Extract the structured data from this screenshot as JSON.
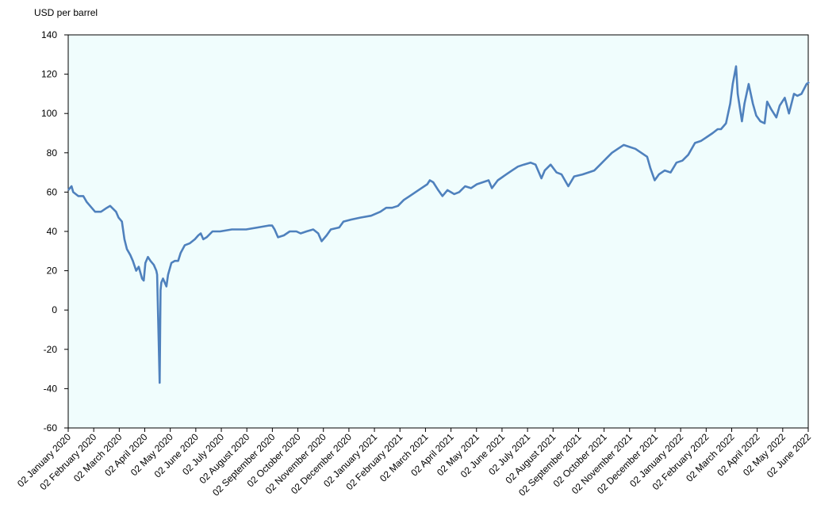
{
  "chart_data": {
    "type": "line",
    "ylabel": "USD per barrel",
    "ylim": [
      -60,
      140
    ],
    "yticks": [
      "140",
      "120",
      "100",
      "80",
      "60",
      "40",
      "20",
      "0",
      "-20",
      "-40",
      "-60"
    ],
    "xticks": [
      "02 January 2020",
      "02 February 2020",
      "02 March 2020",
      "02 April 2020",
      "02 May 2020",
      "02 June 2020",
      "02 July 2020",
      "02 August 2020",
      "02 September 2020",
      "02 October 2020",
      "02 November 2020",
      "02 December 2020",
      "02 January 2021",
      "02 February 2021",
      "02 March 2021",
      "02 April 2021",
      "02 May 2021",
      "02 June 2021",
      "02 July 2021",
      "02 August 2021",
      "02 September 2021",
      "02 October 2021",
      "02 November 2021",
      "02 December 2021",
      "02 January 2022",
      "02 February 2022",
      "02 March 2022",
      "02 April 2022",
      "02 May 2022",
      "02 June 2022"
    ],
    "grid": false,
    "colors": {
      "line": "#4f81bd",
      "plot_bg": "#f0fdfd",
      "axis": "#000000"
    },
    "series": [
      {
        "points": [
          [
            "2020-01-02",
            61
          ],
          [
            "2020-01-06",
            63
          ],
          [
            "2020-01-08",
            60
          ],
          [
            "2020-01-14",
            58
          ],
          [
            "2020-01-20",
            58
          ],
          [
            "2020-01-24",
            55
          ],
          [
            "2020-01-30",
            52
          ],
          [
            "2020-02-03",
            50
          ],
          [
            "2020-02-10",
            50
          ],
          [
            "2020-02-17",
            52
          ],
          [
            "2020-02-21",
            53
          ],
          [
            "2020-02-28",
            50
          ],
          [
            "2020-03-02",
            47
          ],
          [
            "2020-03-06",
            45
          ],
          [
            "2020-03-09",
            36
          ],
          [
            "2020-03-12",
            31
          ],
          [
            "2020-03-16",
            28
          ],
          [
            "2020-03-19",
            25
          ],
          [
            "2020-03-23",
            20
          ],
          [
            "2020-03-26",
            22
          ],
          [
            "2020-03-30",
            16
          ],
          [
            "2020-04-01",
            15
          ],
          [
            "2020-04-03",
            24
          ],
          [
            "2020-04-06",
            27
          ],
          [
            "2020-04-09",
            25
          ],
          [
            "2020-04-13",
            23
          ],
          [
            "2020-04-16",
            20
          ],
          [
            "2020-04-17",
            18
          ],
          [
            "2020-04-20",
            -37
          ],
          [
            "2020-04-21",
            10
          ],
          [
            "2020-04-22",
            14
          ],
          [
            "2020-04-24",
            16
          ],
          [
            "2020-04-28",
            12
          ],
          [
            "2020-04-30",
            18
          ],
          [
            "2020-05-04",
            24
          ],
          [
            "2020-05-08",
            25
          ],
          [
            "2020-05-12",
            25
          ],
          [
            "2020-05-15",
            29
          ],
          [
            "2020-05-20",
            33
          ],
          [
            "2020-05-26",
            34
          ],
          [
            "2020-06-01",
            36
          ],
          [
            "2020-06-05",
            38
          ],
          [
            "2020-06-08",
            39
          ],
          [
            "2020-06-11",
            36
          ],
          [
            "2020-06-15",
            37
          ],
          [
            "2020-06-22",
            40
          ],
          [
            "2020-07-01",
            40
          ],
          [
            "2020-07-15",
            41
          ],
          [
            "2020-08-01",
            41
          ],
          [
            "2020-08-15",
            42
          ],
          [
            "2020-08-28",
            43
          ],
          [
            "2020-09-01",
            43
          ],
          [
            "2020-09-04",
            41
          ],
          [
            "2020-09-08",
            37
          ],
          [
            "2020-09-15",
            38
          ],
          [
            "2020-09-22",
            40
          ],
          [
            "2020-09-30",
            40
          ],
          [
            "2020-10-05",
            39
          ],
          [
            "2020-10-12",
            40
          ],
          [
            "2020-10-20",
            41
          ],
          [
            "2020-10-26",
            39
          ],
          [
            "2020-10-30",
            35
          ],
          [
            "2020-11-05",
            38
          ],
          [
            "2020-11-10",
            41
          ],
          [
            "2020-11-20",
            42
          ],
          [
            "2020-11-25",
            45
          ],
          [
            "2020-12-04",
            46
          ],
          [
            "2020-12-15",
            47
          ],
          [
            "2020-12-28",
            48
          ],
          [
            "2021-01-08",
            50
          ],
          [
            "2021-01-15",
            52
          ],
          [
            "2021-01-22",
            52
          ],
          [
            "2021-01-29",
            53
          ],
          [
            "2021-02-05",
            56
          ],
          [
            "2021-02-12",
            58
          ],
          [
            "2021-02-19",
            60
          ],
          [
            "2021-02-26",
            62
          ],
          [
            "2021-03-05",
            64
          ],
          [
            "2021-03-08",
            66
          ],
          [
            "2021-03-12",
            65
          ],
          [
            "2021-03-18",
            61
          ],
          [
            "2021-03-23",
            58
          ],
          [
            "2021-03-29",
            61
          ],
          [
            "2021-04-06",
            59
          ],
          [
            "2021-04-12",
            60
          ],
          [
            "2021-04-19",
            63
          ],
          [
            "2021-04-26",
            62
          ],
          [
            "2021-05-03",
            64
          ],
          [
            "2021-05-10",
            65
          ],
          [
            "2021-05-17",
            66
          ],
          [
            "2021-05-21",
            62
          ],
          [
            "2021-05-28",
            66
          ],
          [
            "2021-06-07",
            69
          ],
          [
            "2021-06-14",
            71
          ],
          [
            "2021-06-21",
            73
          ],
          [
            "2021-06-28",
            74
          ],
          [
            "2021-07-06",
            75
          ],
          [
            "2021-07-12",
            74
          ],
          [
            "2021-07-19",
            67
          ],
          [
            "2021-07-23",
            71
          ],
          [
            "2021-07-30",
            74
          ],
          [
            "2021-08-06",
            70
          ],
          [
            "2021-08-12",
            69
          ],
          [
            "2021-08-20",
            63
          ],
          [
            "2021-08-27",
            68
          ],
          [
            "2021-09-06",
            69
          ],
          [
            "2021-09-13",
            70
          ],
          [
            "2021-09-20",
            71
          ],
          [
            "2021-09-27",
            74
          ],
          [
            "2021-10-04",
            77
          ],
          [
            "2021-10-11",
            80
          ],
          [
            "2021-10-18",
            82
          ],
          [
            "2021-10-25",
            84
          ],
          [
            "2021-11-01",
            83
          ],
          [
            "2021-11-08",
            82
          ],
          [
            "2021-11-15",
            80
          ],
          [
            "2021-11-22",
            78
          ],
          [
            "2021-11-26",
            72
          ],
          [
            "2021-12-01",
            66
          ],
          [
            "2021-12-06",
            69
          ],
          [
            "2021-12-13",
            71
          ],
          [
            "2021-12-20",
            70
          ],
          [
            "2021-12-27",
            75
          ],
          [
            "2022-01-03",
            76
          ],
          [
            "2022-01-10",
            79
          ],
          [
            "2022-01-18",
            85
          ],
          [
            "2022-01-25",
            86
          ],
          [
            "2022-02-01",
            88
          ],
          [
            "2022-02-08",
            90
          ],
          [
            "2022-02-14",
            92
          ],
          [
            "2022-02-18",
            92
          ],
          [
            "2022-02-24",
            95
          ],
          [
            "2022-03-01",
            105
          ],
          [
            "2022-03-04",
            115
          ],
          [
            "2022-03-08",
            124
          ],
          [
            "2022-03-10",
            110
          ],
          [
            "2022-03-15",
            96
          ],
          [
            "2022-03-18",
            105
          ],
          [
            "2022-03-23",
            115
          ],
          [
            "2022-03-28",
            105
          ],
          [
            "2022-04-01",
            99
          ],
          [
            "2022-04-06",
            96
          ],
          [
            "2022-04-11",
            95
          ],
          [
            "2022-04-14",
            106
          ],
          [
            "2022-04-19",
            102
          ],
          [
            "2022-04-25",
            98
          ],
          [
            "2022-04-29",
            104
          ],
          [
            "2022-05-05",
            108
          ],
          [
            "2022-05-10",
            100
          ],
          [
            "2022-05-16",
            110
          ],
          [
            "2022-05-20",
            109
          ],
          [
            "2022-05-25",
            110
          ],
          [
            "2022-05-31",
            115
          ],
          [
            "2022-06-03",
            116
          ]
        ]
      }
    ]
  }
}
